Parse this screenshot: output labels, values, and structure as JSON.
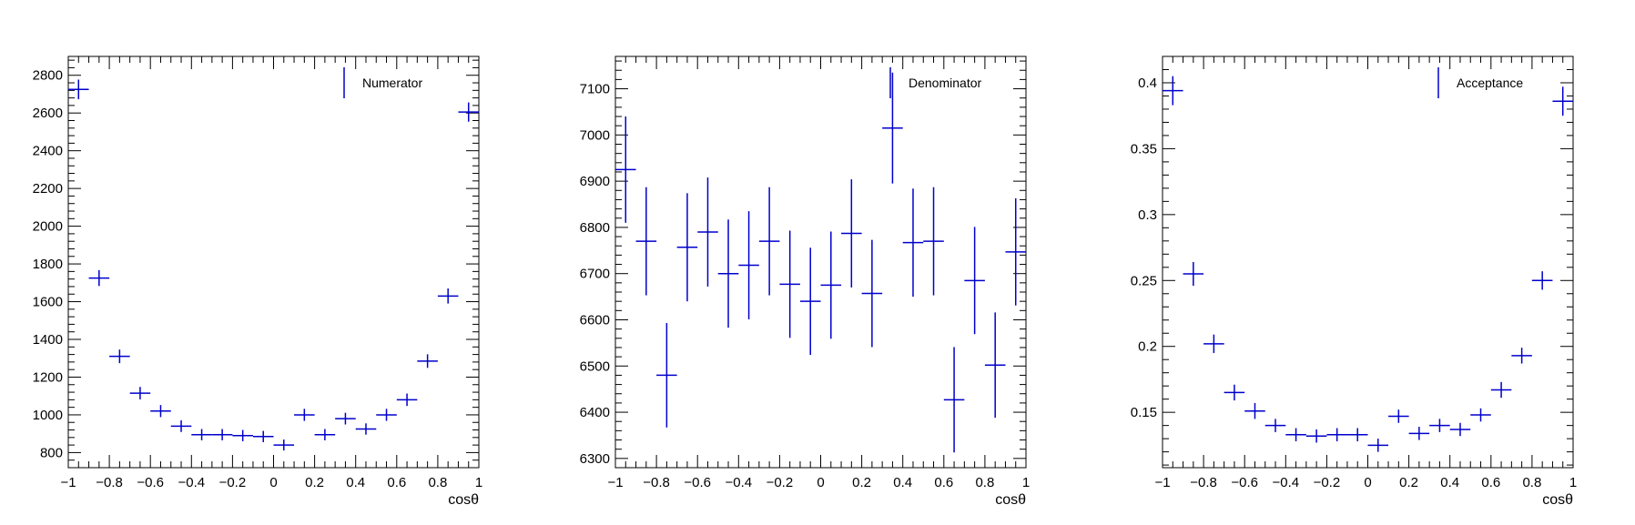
{
  "colors": {
    "marker": "#0000cc",
    "axis": "#000000",
    "frame": "#000000"
  },
  "chart_data": [
    {
      "type": "scatter",
      "style": "error-bars",
      "xlabel": "cosθ",
      "ylabel": "",
      "xlim": [
        -1,
        1
      ],
      "ylim": [
        720,
        2900
      ],
      "x_ticks": [
        -1,
        -0.8,
        -0.6,
        -0.4,
        -0.2,
        0,
        0.2,
        0.4,
        0.6,
        0.8,
        1
      ],
      "x_tick_labels": [
        "−1",
        "−0.8",
        "−0.6",
        "−0.4",
        "−0.2",
        "0",
        "0.2",
        "0.4",
        "0.6",
        "0.8",
        "1"
      ],
      "y_ticks": [
        800,
        1000,
        1200,
        1400,
        1600,
        1800,
        2000,
        2200,
        2400,
        2600,
        2800
      ],
      "y_tick_labels": [
        "800",
        "1000",
        "1200",
        "1400",
        "1600",
        "1800",
        "2000",
        "2200",
        "2400",
        "2600",
        "2800"
      ],
      "legend": {
        "label": "Numerator",
        "position": "top-right"
      },
      "series": [
        {
          "name": "Numerator",
          "x": [
            -0.95,
            -0.85,
            -0.75,
            -0.65,
            -0.55,
            -0.45,
            -0.35,
            -0.25,
            -0.15,
            -0.05,
            0.05,
            0.15,
            0.25,
            0.35,
            0.45,
            0.55,
            0.65,
            0.75,
            0.85,
            0.95
          ],
          "values": [
            2725,
            1725,
            1310,
            1115,
            1020,
            940,
            895,
            895,
            890,
            885,
            840,
            1000,
            895,
            980,
            925,
            1000,
            1080,
            1285,
            1630,
            2605
          ],
          "errors": [
            52,
            42,
            36,
            33,
            32,
            31,
            30,
            30,
            30,
            30,
            29,
            32,
            30,
            31,
            30,
            32,
            33,
            36,
            40,
            51
          ]
        }
      ]
    },
    {
      "type": "scatter",
      "style": "error-bars",
      "xlabel": "cosθ",
      "ylabel": "",
      "xlim": [
        -1,
        1
      ],
      "ylim": [
        6280,
        7170
      ],
      "x_ticks": [
        -1,
        -0.8,
        -0.6,
        -0.4,
        -0.2,
        0,
        0.2,
        0.4,
        0.6,
        0.8,
        1
      ],
      "x_tick_labels": [
        "−1",
        "−0.8",
        "−0.6",
        "−0.4",
        "−0.2",
        "0",
        "0.2",
        "0.4",
        "0.6",
        "0.8",
        "1"
      ],
      "y_ticks": [
        6300,
        6400,
        6500,
        6600,
        6700,
        6800,
        6900,
        7000,
        7100
      ],
      "y_tick_labels": [
        "6300",
        "6400",
        "6500",
        "6600",
        "6700",
        "6800",
        "6900",
        "7000",
        "7100"
      ],
      "legend": {
        "label": "Denominator",
        "position": "top-right"
      },
      "series": [
        {
          "name": "Denominator",
          "x": [
            -0.95,
            -0.85,
            -0.75,
            -0.65,
            -0.55,
            -0.45,
            -0.35,
            -0.25,
            -0.15,
            -0.05,
            0.05,
            0.15,
            0.25,
            0.35,
            0.45,
            0.55,
            0.65,
            0.75,
            0.85,
            0.95
          ],
          "values": [
            6925,
            6770,
            6480,
            6757,
            6790,
            6700,
            6718,
            6770,
            6677,
            6640,
            6675,
            6787,
            6657,
            7015,
            6767,
            6770,
            6427,
            6685,
            6502,
            6747
          ],
          "errors": [
            115,
            117,
            113,
            117,
            118,
            117,
            117,
            117,
            116,
            116,
            116,
            117,
            116,
            120,
            117,
            117,
            114,
            116,
            114,
            116
          ]
        }
      ]
    },
    {
      "type": "scatter",
      "style": "error-bars",
      "xlabel": "cosθ",
      "ylabel": "",
      "xlim": [
        -1,
        1
      ],
      "ylim": [
        0.108,
        0.42
      ],
      "x_ticks": [
        -1,
        -0.8,
        -0.6,
        -0.4,
        -0.2,
        0,
        0.2,
        0.4,
        0.6,
        0.8,
        1
      ],
      "x_tick_labels": [
        "−1",
        "−0.8",
        "−0.6",
        "−0.4",
        "−0.2",
        "0",
        "0.2",
        "0.4",
        "0.6",
        "0.8",
        "1"
      ],
      "y_ticks": [
        0.15,
        0.2,
        0.25,
        0.3,
        0.35,
        0.4
      ],
      "y_tick_labels": [
        "0.15",
        "0.2",
        "0.25",
        "0.3",
        "0.35",
        "0.4"
      ],
      "legend": {
        "label": "Acceptance",
        "position": "top-right"
      },
      "series": [
        {
          "name": "Acceptance",
          "x": [
            -0.95,
            -0.85,
            -0.75,
            -0.65,
            -0.55,
            -0.45,
            -0.35,
            -0.25,
            -0.15,
            -0.05,
            0.05,
            0.15,
            0.25,
            0.35,
            0.45,
            0.55,
            0.65,
            0.75,
            0.85,
            0.95
          ],
          "values": [
            0.394,
            0.255,
            0.202,
            0.165,
            0.151,
            0.14,
            0.133,
            0.132,
            0.133,
            0.133,
            0.125,
            0.147,
            0.134,
            0.14,
            0.137,
            0.148,
            0.167,
            0.193,
            0.25,
            0.386
          ],
          "errors": [
            0.011,
            0.009,
            0.007,
            0.006,
            0.006,
            0.005,
            0.005,
            0.005,
            0.005,
            0.005,
            0.005,
            0.005,
            0.005,
            0.005,
            0.005,
            0.005,
            0.006,
            0.006,
            0.007,
            0.011
          ]
        }
      ]
    }
  ]
}
